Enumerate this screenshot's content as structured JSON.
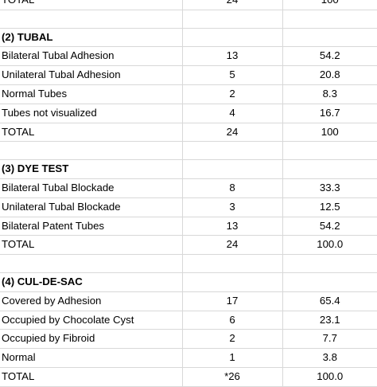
{
  "table": {
    "top_total": {
      "label": "TOTAL",
      "n": "24",
      "pct": "100"
    },
    "sections": [
      {
        "heading": "(2) TUBAL",
        "rows": [
          {
            "label": "Bilateral Tubal Adhesion",
            "n": "13",
            "pct": "54.2"
          },
          {
            "label": "Unilateral Tubal Adhesion",
            "n": "5",
            "pct": "20.8"
          },
          {
            "label": "Normal Tubes",
            "n": "2",
            "pct": "8.3"
          },
          {
            "label": "Tubes not visualized",
            "n": "4",
            "pct": "16.7"
          },
          {
            "label": "TOTAL",
            "n": "24",
            "pct": "100"
          }
        ]
      },
      {
        "heading": "(3) DYE TEST",
        "rows": [
          {
            "label": "Bilateral Tubal Blockade",
            "n": "8",
            "pct": "33.3"
          },
          {
            "label": "Unilateral Tubal Blockade",
            "n": "3",
            "pct": "12.5"
          },
          {
            "label": "Bilateral Patent Tubes",
            "n": "13",
            "pct": "54.2"
          },
          {
            "label": "TOTAL",
            "n": "24",
            "pct": "100.0"
          }
        ]
      },
      {
        "heading": "(4) CUL-DE-SAC",
        "rows": [
          {
            "label": "Covered by Adhesion",
            "n": "17",
            "pct": "65.4"
          },
          {
            "label": "Occupied by Chocolate Cyst",
            "n": "6",
            "pct": "23.1"
          },
          {
            "label": "Occupied by Fibroid",
            "n": "2",
            "pct": "7.7"
          },
          {
            "label": "Normal",
            "n": "1",
            "pct": "3.8"
          },
          {
            "label": "TOTAL",
            "n": "*26",
            "pct": "100.0"
          }
        ]
      }
    ]
  }
}
